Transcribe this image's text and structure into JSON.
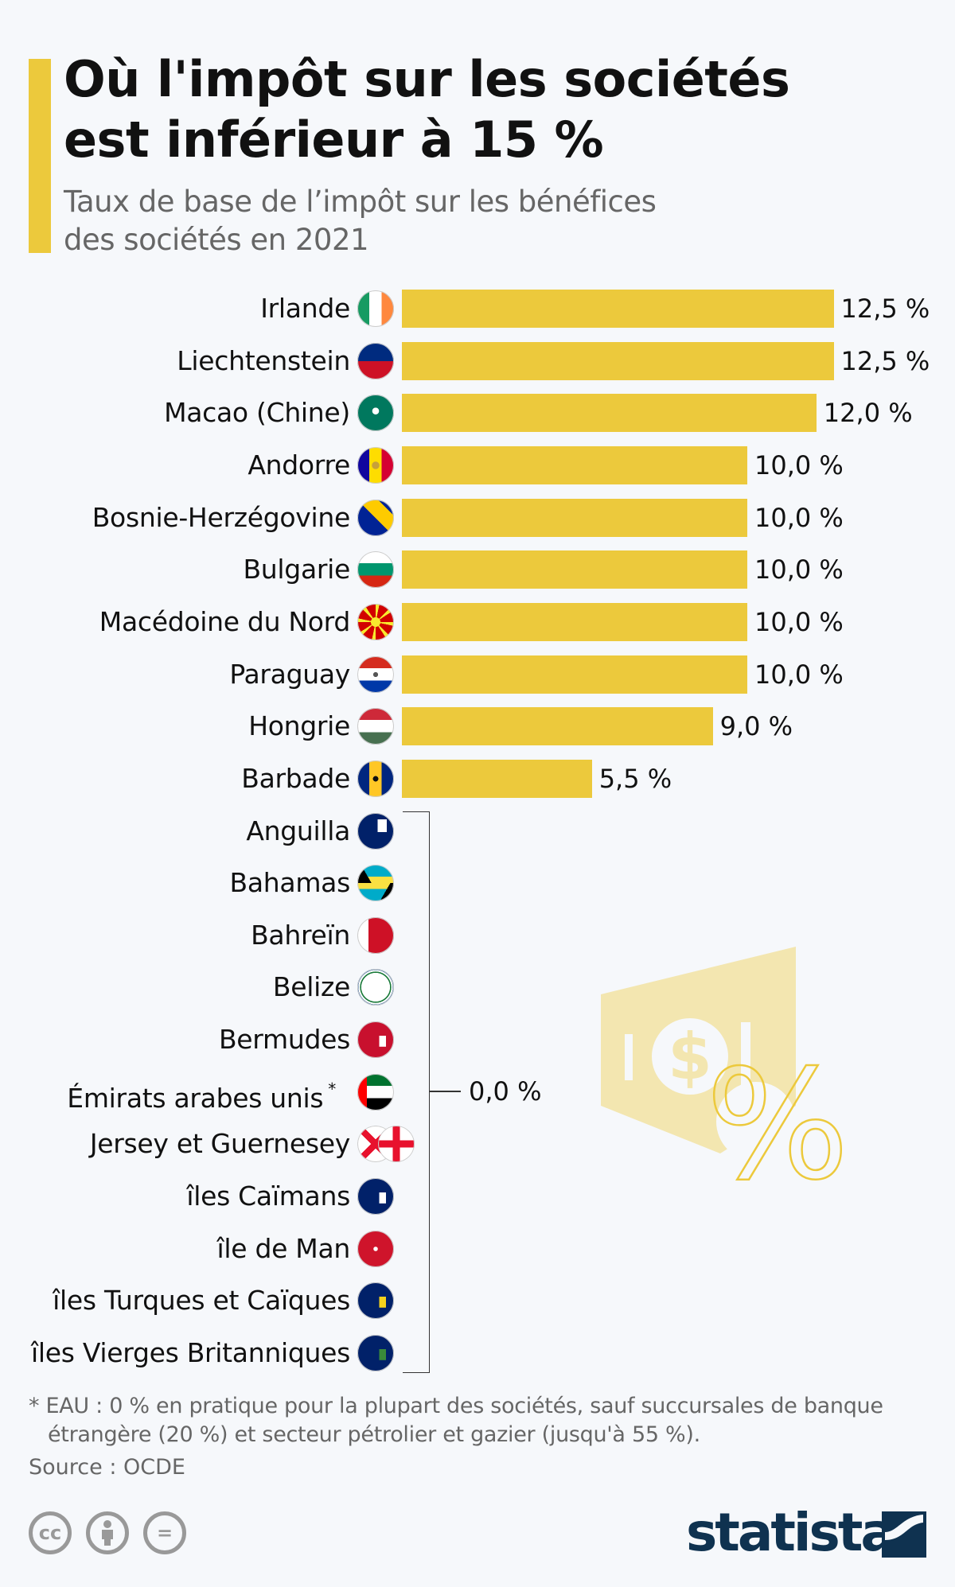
{
  "header": {
    "title_line1": "Où l'impôt sur les sociétés",
    "title_line2": "est inférieur à 15 %",
    "subtitle_line1": "Taux de base de l’impôt sur les bénéfices",
    "subtitle_line2": "des sociétés en 2021"
  },
  "chart_data": {
    "type": "bar",
    "orientation": "horizontal",
    "title": "Où l'impôt sur les sociétés est inférieur à 15 %",
    "subtitle": "Taux de base de l’impôt sur les bénéfices des sociétés en 2021",
    "unit": "%",
    "bar_color": "#ecc93c",
    "rows": [
      {
        "label": "Irlande",
        "value": 12.5,
        "value_label": "12,5 %",
        "flag": "flag-ireland"
      },
      {
        "label": "Liechtenstein",
        "value": 12.5,
        "value_label": "12,5 %",
        "flag": "flag-liechtenstein"
      },
      {
        "label": "Macao (Chine)",
        "value": 12.0,
        "value_label": "12,0 %",
        "flag": "flag-macao"
      },
      {
        "label": "Andorre",
        "value": 10.0,
        "value_label": "10,0 %",
        "flag": "flag-andorra"
      },
      {
        "label": "Bosnie-Herzégovine",
        "value": 10.0,
        "value_label": "10,0 %",
        "flag": "flag-bosnia"
      },
      {
        "label": "Bulgarie",
        "value": 10.0,
        "value_label": "10,0 %",
        "flag": "flag-bulgaria"
      },
      {
        "label": "Macédoine du Nord",
        "value": 10.0,
        "value_label": "10,0 %",
        "flag": "flag-north-macedonia"
      },
      {
        "label": "Paraguay",
        "value": 10.0,
        "value_label": "10,0 %",
        "flag": "flag-paraguay"
      },
      {
        "label": "Hongrie",
        "value": 9.0,
        "value_label": "9,0 %",
        "flag": "flag-hungary"
      },
      {
        "label": "Barbade",
        "value": 5.5,
        "value_label": "5,5 %",
        "flag": "flag-barbados"
      },
      {
        "label": "Anguilla",
        "value": 0,
        "flag": "flag-anguilla"
      },
      {
        "label": "Bahamas",
        "value": 0,
        "flag": "flag-bahamas"
      },
      {
        "label": "Bahreïn",
        "value": 0,
        "flag": "flag-bahrain"
      },
      {
        "label": "Belize",
        "value": 0,
        "flag": "flag-belize"
      },
      {
        "label": "Bermudes",
        "value": 0,
        "flag": "flag-bermuda"
      },
      {
        "label": "Émirats arabes unis",
        "note_mark": "*",
        "value": 0,
        "flag": "flag-uae"
      },
      {
        "label": "Jersey et Guernesey",
        "value": 0,
        "flag": "flag-jersey",
        "flag2": "flag-guernsey"
      },
      {
        "label": "îles Caïmans",
        "value": 0,
        "flag": "flag-cayman"
      },
      {
        "label": "île de Man",
        "value": 0,
        "flag": "flag-isle-of-man"
      },
      {
        "label": "îles Turques et Caïques",
        "value": 0,
        "flag": "flag-turks-caicos"
      },
      {
        "label": "îles Vierges Britanniques",
        "value": 0,
        "flag": "flag-bvi"
      }
    ],
    "group_label": "0,0 %"
  },
  "footer": {
    "note_line1": "* EAU : 0 % en pratique pour la plupart des sociétés, sauf succursales de banque",
    "note_line2": "étrangère (20 %) et secteur pétrolier et gazier (jusqu'à 55 %).",
    "source": "Source : OCDE",
    "license_icons": [
      "cc-icon",
      "attribution-icon",
      "no-derivatives-icon"
    ],
    "brand": "statista"
  }
}
